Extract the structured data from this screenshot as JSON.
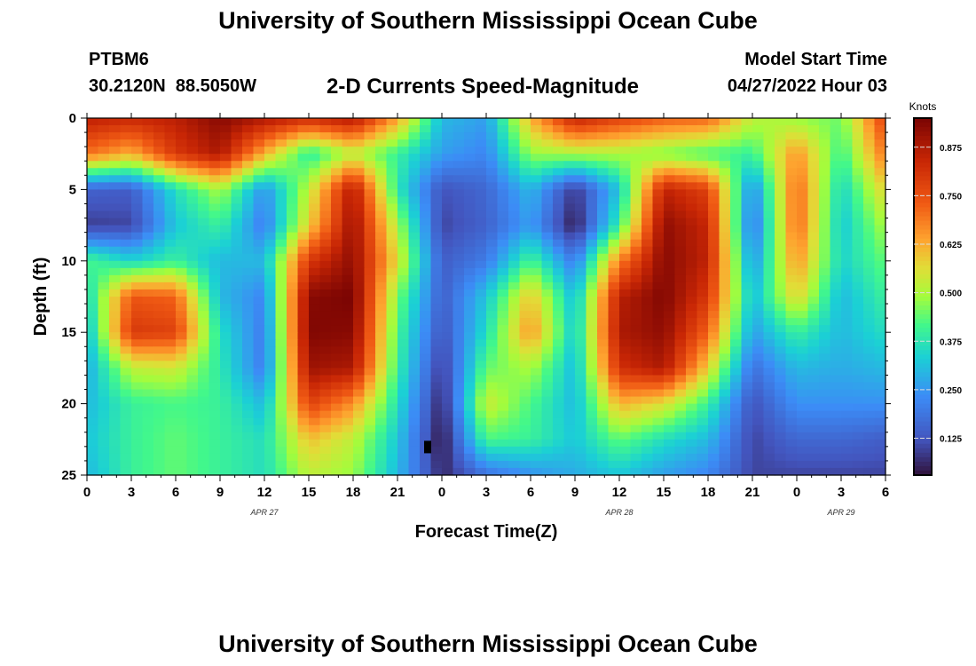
{
  "header": {
    "title": "University of Southern Mississippi Ocean Cube",
    "station_id": "PTBM6",
    "station_coords": "30.2120N  88.5050W",
    "chart_title": "2-D Currents Speed-Magnitude",
    "start_label": "Model Start Time",
    "start_value": "04/27/2022 Hour 03"
  },
  "footer": {
    "title": "University of Southern Mississippi Ocean Cube"
  },
  "chart_data": {
    "type": "heatmap",
    "title": "2-D Currents Speed-Magnitude",
    "xlabel": "Forecast Time(Z)",
    "ylabel": "Depth (ft)",
    "x_tick_labels": [
      "0",
      "3",
      "6",
      "9",
      "12",
      "15",
      "18",
      "21",
      "0",
      "3",
      "6",
      "9",
      "12",
      "15",
      "18",
      "21",
      "0",
      "3",
      "6"
    ],
    "x_hours_from_apr27_00z": [
      0,
      3,
      6,
      9,
      12,
      15,
      18,
      21,
      24,
      27,
      30,
      33,
      36,
      39,
      42,
      45,
      48,
      51,
      54
    ],
    "date_labels": [
      {
        "label": "APR 27",
        "at_hour": 12
      },
      {
        "label": "APR 28",
        "at_hour": 36
      },
      {
        "label": "APR 29",
        "at_hour": 51
      }
    ],
    "y_tick_labels": [
      "0",
      "5",
      "10",
      "15",
      "20",
      "25"
    ],
    "ylim": [
      0,
      25
    ],
    "y_inverted": true,
    "colorbar": {
      "label": "Knots",
      "ticks": [
        "0.125",
        "0.250",
        "0.375",
        "0.500",
        "0.625",
        "0.750",
        "0.875"
      ],
      "range": [
        0.03,
        0.95
      ],
      "colormap": "turbo"
    },
    "depths_ft": [
      0,
      2.5,
      5,
      7.5,
      10,
      12.5,
      15,
      17.5,
      20,
      22.5,
      25
    ],
    "times_h": [
      0,
      3,
      6,
      9,
      12,
      15,
      18,
      21,
      24,
      27,
      30,
      33,
      36,
      39,
      42,
      45,
      48,
      51,
      54
    ],
    "values": [
      [
        0.86,
        0.84,
        0.86,
        0.93,
        0.88,
        0.83,
        0.88,
        0.64,
        0.3,
        0.26,
        0.62,
        0.85,
        0.78,
        0.73,
        0.72,
        0.52,
        0.48,
        0.45,
        0.78
      ],
      [
        0.7,
        0.62,
        0.8,
        0.88,
        0.62,
        0.38,
        0.52,
        0.4,
        0.26,
        0.22,
        0.48,
        0.5,
        0.5,
        0.46,
        0.42,
        0.4,
        0.66,
        0.4,
        0.7
      ],
      [
        0.15,
        0.14,
        0.36,
        0.5,
        0.24,
        0.52,
        0.88,
        0.38,
        0.12,
        0.16,
        0.3,
        0.08,
        0.32,
        0.85,
        0.78,
        0.22,
        0.72,
        0.34,
        0.58
      ],
      [
        0.09,
        0.1,
        0.32,
        0.4,
        0.2,
        0.58,
        0.91,
        0.5,
        0.1,
        0.15,
        0.26,
        0.04,
        0.4,
        0.92,
        0.84,
        0.18,
        0.72,
        0.32,
        0.5
      ],
      [
        0.42,
        0.34,
        0.4,
        0.3,
        0.3,
        0.8,
        0.92,
        0.56,
        0.14,
        0.2,
        0.42,
        0.2,
        0.68,
        0.93,
        0.85,
        0.24,
        0.66,
        0.34,
        0.44
      ],
      [
        0.34,
        0.74,
        0.72,
        0.3,
        0.22,
        0.93,
        0.95,
        0.46,
        0.14,
        0.32,
        0.6,
        0.3,
        0.86,
        0.94,
        0.8,
        0.3,
        0.58,
        0.3,
        0.4
      ],
      [
        0.3,
        0.8,
        0.78,
        0.36,
        0.2,
        0.94,
        0.93,
        0.42,
        0.12,
        0.36,
        0.66,
        0.32,
        0.88,
        0.92,
        0.72,
        0.26,
        0.4,
        0.3,
        0.36
      ],
      [
        0.28,
        0.52,
        0.54,
        0.38,
        0.2,
        0.9,
        0.88,
        0.4,
        0.08,
        0.44,
        0.5,
        0.3,
        0.82,
        0.88,
        0.58,
        0.18,
        0.3,
        0.28,
        0.3
      ],
      [
        0.3,
        0.4,
        0.42,
        0.4,
        0.3,
        0.78,
        0.66,
        0.36,
        0.05,
        0.54,
        0.42,
        0.3,
        0.62,
        0.56,
        0.4,
        0.12,
        0.24,
        0.24,
        0.24
      ],
      [
        0.32,
        0.4,
        0.44,
        0.4,
        0.36,
        0.6,
        0.52,
        0.32,
        0.03,
        0.42,
        0.4,
        0.32,
        0.44,
        0.36,
        0.3,
        0.1,
        0.16,
        0.16,
        0.14
      ],
      [
        0.3,
        0.4,
        0.44,
        0.4,
        0.36,
        0.52,
        0.48,
        0.3,
        0.06,
        0.18,
        0.24,
        0.28,
        0.32,
        0.26,
        0.22,
        0.1,
        0.1,
        0.1,
        0.1
      ]
    ],
    "grid": false
  }
}
